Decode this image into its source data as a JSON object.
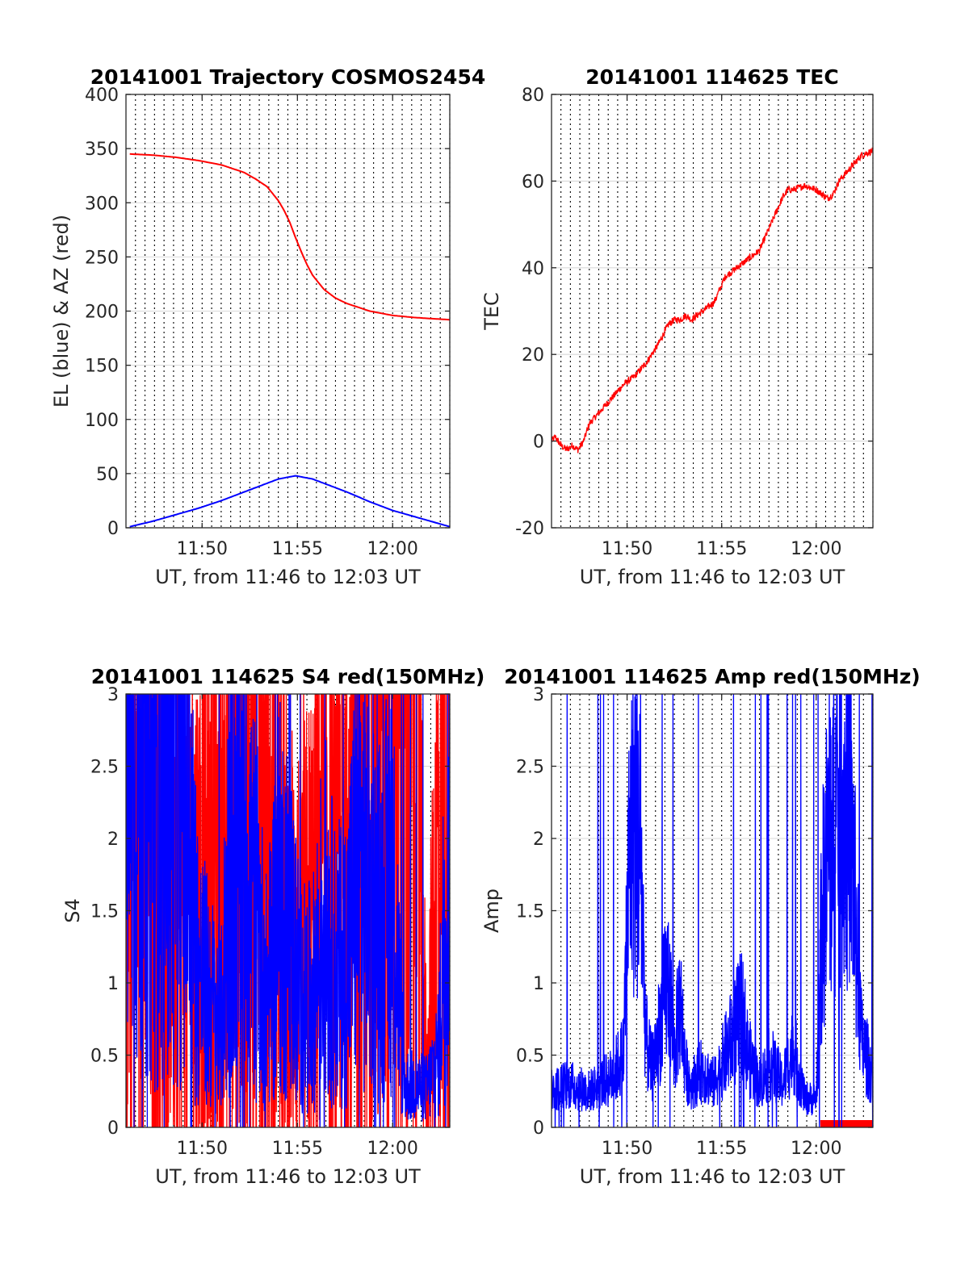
{
  "chart_data": [
    {
      "type": "line",
      "title": "20141001 Trajectory COSMOS2454",
      "xlabel": "UT, from 11:46 to 12:03 UT",
      "ylabel": "EL (blue) & AZ (red)",
      "xlim": [
        11.7667,
        12.05
      ],
      "ylim": [
        0,
        400
      ],
      "xticks": [
        11.8333,
        11.9167,
        12.0
      ],
      "xticklabels": [
        "11:50",
        "11:55",
        "12:00"
      ],
      "yticks": [
        0,
        50,
        100,
        150,
        200,
        250,
        300,
        350,
        400
      ],
      "yticklabels": [
        "0",
        "50",
        "100",
        "150",
        "200",
        "250",
        "300",
        "350",
        "400"
      ],
      "grid": "dotted vertical every 0.5 min in x; light horizontal at y ticks",
      "series": [
        {
          "color": "#ff0000",
          "style": "smooth",
          "x": [
            11.77,
            11.79,
            11.81,
            11.83,
            11.85,
            11.87,
            11.88,
            11.89,
            11.9,
            11.905,
            11.91,
            11.915,
            11.92,
            11.925,
            11.93,
            11.94,
            11.95,
            11.96,
            11.98,
            12.0,
            12.02,
            12.05
          ],
          "y": [
            345,
            344,
            342,
            339,
            335,
            328,
            322,
            315,
            302,
            293,
            282,
            268,
            255,
            243,
            233,
            220,
            212,
            207,
            200,
            196,
            194,
            192
          ]
        },
        {
          "color": "#0000ff",
          "style": "smooth",
          "x": [
            11.77,
            11.79,
            11.81,
            11.83,
            11.85,
            11.87,
            11.89,
            11.9,
            11.91,
            11.915,
            11.92,
            11.93,
            11.94,
            11.96,
            11.98,
            12.0,
            12.02,
            12.04,
            12.05
          ],
          "y": [
            1,
            6,
            12,
            18,
            25,
            33,
            41,
            45,
            47,
            48,
            47,
            45,
            41,
            33,
            24,
            16,
            10,
            4,
            1
          ]
        }
      ]
    },
    {
      "type": "line",
      "title": "20141001 114625 TEC",
      "xlabel": "UT, from 11:46 to 12:03 UT",
      "ylabel": "TEC",
      "xlim": [
        11.7667,
        12.05
      ],
      "ylim": [
        -20,
        80
      ],
      "xticks": [
        11.8333,
        11.9167,
        12.0
      ],
      "xticklabels": [
        "11:50",
        "11:55",
        "12:00"
      ],
      "yticks": [
        -20,
        0,
        20,
        40,
        60,
        80
      ],
      "yticklabels": [
        "-20",
        "0",
        "20",
        "40",
        "60",
        "80"
      ],
      "grid": "dotted vertical every 0.5 min in x; light horizontal at y ticks",
      "series": [
        {
          "color": "#ff0000",
          "style": "noisy",
          "x": [
            11.7667,
            11.77,
            11.775,
            11.78,
            11.785,
            11.79,
            11.795,
            11.8,
            11.81,
            11.82,
            11.83,
            11.84,
            11.85,
            11.86,
            11.87,
            11.875,
            11.88,
            11.885,
            11.89,
            11.9,
            11.91,
            11.915,
            11.92,
            11.93,
            11.94,
            11.95,
            11.96,
            11.97,
            11.975,
            11.98,
            11.99,
            12.0,
            12.01,
            12.015,
            12.02,
            12.03,
            12.04,
            12.05
          ],
          "y": [
            0,
            1,
            -1,
            -2,
            -1,
            -2,
            0,
            4,
            7,
            10,
            13,
            15,
            18,
            22,
            27,
            28,
            28,
            29,
            28,
            30,
            32,
            35,
            38,
            40,
            42,
            44,
            50,
            56,
            58,
            58,
            59,
            58,
            56,
            57,
            60,
            63,
            66,
            67
          ]
        }
      ]
    },
    {
      "type": "line",
      "title": "20141001 114625 S4 red(150MHz)",
      "xlabel": "UT, from 11:46 to 12:03 UT",
      "ylabel": "S4",
      "xlim": [
        11.7667,
        12.05
      ],
      "ylim": [
        0,
        3
      ],
      "xticks": [
        11.8333,
        11.9167,
        12.0
      ],
      "xticklabels": [
        "11:50",
        "11:55",
        "12:00"
      ],
      "yticks": [
        0,
        0.5,
        1,
        1.5,
        2,
        2.5,
        3
      ],
      "yticklabels": [
        "0",
        "0.5",
        "1",
        "1.5",
        "2",
        "2.5",
        "3"
      ],
      "grid": "dotted vertical every 0.5 min in x; light horizontal at y ticks",
      "series": [
        {
          "color": "#ff0000",
          "style": "spiky",
          "spread": 1.3,
          "x": [
            11.7667,
            11.78,
            11.79,
            11.8,
            11.81,
            11.82,
            11.83,
            11.84,
            11.85,
            11.86,
            11.87,
            11.88,
            11.89,
            11.9,
            11.91,
            11.92,
            11.93,
            11.94,
            11.95,
            11.96,
            11.97,
            11.98,
            11.99,
            12.0,
            12.01,
            12.02,
            12.03,
            12.04,
            12.05
          ],
          "y": [
            2.0,
            2.0,
            1.9,
            1.8,
            1.7,
            1.6,
            1.5,
            1.6,
            1.8,
            1.8,
            2.0,
            2.0,
            1.7,
            1.5,
            1.3,
            1.2,
            1.4,
            1.8,
            1.5,
            1.7,
            2.2,
            2.5,
            2.7,
            2.9,
            2.8,
            2.6,
            0.3,
            2.0,
            2.5
          ]
        },
        {
          "color": "#0000ff",
          "style": "spiky",
          "spread": 0.9,
          "x": [
            11.7667,
            11.77,
            11.78,
            11.79,
            11.8,
            11.81,
            11.82,
            11.83,
            11.84,
            11.85,
            11.86,
            11.87,
            11.88,
            11.89,
            11.9,
            11.91,
            11.92,
            11.93,
            11.94,
            11.95,
            11.96,
            11.97,
            11.98,
            11.99,
            12.0,
            12.01,
            12.02,
            12.03,
            12.04,
            12.05
          ],
          "y": [
            2.2,
            2.4,
            2.5,
            2.3,
            2.4,
            2.5,
            2.2,
            1.1,
            0.9,
            0.7,
            2.3,
            2.0,
            1.5,
            0.9,
            1.6,
            1.4,
            0.9,
            0.9,
            1.5,
            1.1,
            1.2,
            1.9,
            1.6,
            1.4,
            1.8,
            0.3,
            0.28,
            0.27,
            0.5,
            2.3
          ]
        }
      ]
    },
    {
      "type": "line",
      "title": "20141001 114625 Amp red(150MHz)",
      "xlabel": "UT, from 11:46 to 12:03 UT",
      "ylabel": "Amp",
      "xlim": [
        11.7667,
        12.05
      ],
      "ylim": [
        0,
        3
      ],
      "xticks": [
        11.8333,
        11.9167,
        12.0
      ],
      "xticklabels": [
        "11:50",
        "11:55",
        "12:00"
      ],
      "yticks": [
        0,
        0.5,
        1,
        1.5,
        2,
        2.5,
        3
      ],
      "yticklabels": [
        "0",
        "0.5",
        "1",
        "1.5",
        "2",
        "2.5",
        "3"
      ],
      "grid": "dotted vertical every 0.5 min in x; light horizontal at y ticks",
      "series": [
        {
          "color": "#ff0000",
          "style": "band",
          "x": [
            12.004,
            12.05
          ],
          "y": [
            0.05,
            0.05
          ]
        },
        {
          "color": "#0000ff",
          "style": "spiky",
          "spread": 0.6,
          "x": [
            11.7667,
            11.78,
            11.8,
            11.82,
            11.83,
            11.835,
            11.84,
            11.845,
            11.85,
            11.855,
            11.86,
            11.87,
            11.875,
            11.88,
            11.885,
            11.89,
            11.9,
            11.91,
            11.92,
            11.93,
            11.935,
            11.94,
            11.95,
            11.96,
            11.97,
            11.98,
            11.99,
            12.0,
            12.005,
            12.01,
            12.02,
            12.03,
            12.04,
            12.05
          ],
          "y": [
            0.25,
            0.3,
            0.25,
            0.35,
            0.5,
            1.8,
            2.2,
            1.9,
            0.6,
            0.4,
            0.6,
            1.05,
            0.5,
            0.9,
            0.4,
            0.3,
            0.4,
            0.3,
            0.5,
            0.7,
            0.8,
            0.5,
            0.3,
            0.45,
            0.3,
            0.55,
            0.2,
            0.2,
            1.4,
            1.9,
            2.2,
            2.2,
            0.6,
            0.35
          ]
        }
      ]
    }
  ]
}
